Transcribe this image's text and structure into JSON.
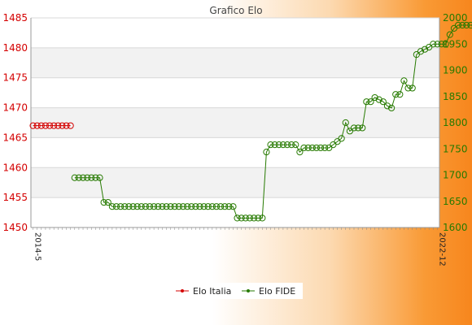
{
  "chart_data": {
    "type": "line",
    "title": "Grafico Elo",
    "y_left": {
      "min": 1450,
      "max": 1485,
      "ticks": [
        1450,
        1455,
        1460,
        1465,
        1470,
        1475,
        1480,
        1485
      ],
      "color": "#d40000"
    },
    "y_right": {
      "min": 1600,
      "max": 2000,
      "ticks": [
        1600,
        1650,
        1700,
        1750,
        1800,
        1850,
        1900,
        1950,
        2000
      ],
      "color": "#267a00"
    },
    "x_tick_count": 98,
    "x_first_label": "2014-5",
    "x_last_label": "2022-12",
    "grid": true,
    "legend_position": "bottom-center",
    "series": [
      {
        "name": "Elo Italia",
        "axis": "left",
        "color": "#d40000",
        "values": [
          1467,
          1467,
          1467,
          1467,
          1467,
          1467,
          1467,
          1467,
          1467,
          1467
        ]
      },
      {
        "name": "Elo FIDE",
        "axis": "right",
        "color": "#267a00",
        "start_index": 10,
        "values": [
          1695,
          1695,
          1695,
          1695,
          1695,
          1695,
          1695,
          1648,
          1648,
          1640,
          1640,
          1640,
          1640,
          1640,
          1640,
          1640,
          1640,
          1640,
          1640,
          1640,
          1640,
          1640,
          1640,
          1640,
          1640,
          1640,
          1640,
          1640,
          1640,
          1640,
          1640,
          1640,
          1640,
          1640,
          1640,
          1640,
          1640,
          1640,
          1640,
          1618,
          1618,
          1618,
          1618,
          1618,
          1618,
          1618,
          1744,
          1758,
          1758,
          1758,
          1758,
          1758,
          1758,
          1758,
          1744,
          1752,
          1752,
          1752,
          1752,
          1752,
          1752,
          1752,
          1758,
          1764,
          1770,
          1800,
          1784,
          1790,
          1790,
          1790,
          1840,
          1840,
          1848,
          1844,
          1840,
          1832,
          1828,
          1854,
          1854,
          1880,
          1866,
          1866,
          1930,
          1936,
          1940,
          1944,
          1950,
          1950,
          1950,
          1950,
          1968,
          1980,
          1986,
          1986,
          1986,
          1986,
          1986,
          1964,
          1964
        ]
      }
    ]
  }
}
